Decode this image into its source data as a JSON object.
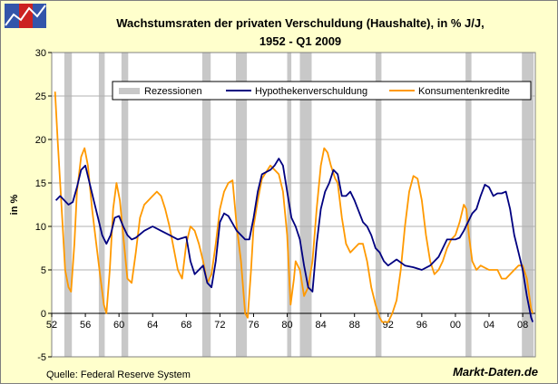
{
  "header": {
    "title_line1": "Wachstumsraten der privaten Verschuldung (Haushalte), in % J/J,",
    "title_line2": "1952 - Q1 2009"
  },
  "footer": {
    "source": "Quelle: Federal Reserve System",
    "brand": "Markt-Daten.de"
  },
  "logo": {
    "icon": "line-chart-logo-icon",
    "colors": [
      "#3355aa",
      "#cc2222",
      "#3355aa"
    ]
  },
  "chart_data": {
    "type": "line",
    "ylabel": "in %",
    "xlim": [
      1952,
      2009.5
    ],
    "ylim": [
      -5,
      30
    ],
    "y_ticks": [
      -5,
      0,
      5,
      10,
      15,
      20,
      25,
      30
    ],
    "y_tick_labels": [
      "-5",
      "0",
      "5",
      "10",
      "15",
      "20",
      "25",
      "30"
    ],
    "x_ticks": [
      1952,
      1956,
      1960,
      1964,
      1968,
      1972,
      1976,
      1980,
      1984,
      1988,
      1992,
      1996,
      2000,
      2004,
      2008
    ],
    "x_tick_labels": [
      "52",
      "56",
      "60",
      "64",
      "68",
      "72",
      "76",
      "80",
      "84",
      "88",
      "92",
      "96",
      "00",
      "04",
      "08"
    ],
    "grid": "horizontal",
    "legend_position": "top-right",
    "recession_label": "Rezessionen",
    "recession_color": "#c8c8c8",
    "recessions": [
      [
        1953.5,
        1954.4
      ],
      [
        1957.6,
        1958.3
      ],
      [
        1960.3,
        1961.1
      ],
      [
        1969.9,
        1970.9
      ],
      [
        1973.9,
        1975.2
      ],
      [
        1980.0,
        1980.5
      ],
      [
        1981.5,
        1982.9
      ],
      [
        1990.5,
        1991.2
      ],
      [
        2001.2,
        2001.9
      ],
      [
        2007.9,
        2009.3
      ]
    ],
    "series": [
      {
        "name": "Hypothekenverschuldung",
        "color": "#000080",
        "points": [
          [
            1952.5,
            13
          ],
          [
            1953,
            13.5
          ],
          [
            1953.5,
            13
          ],
          [
            1954,
            12.5
          ],
          [
            1954.5,
            12.8
          ],
          [
            1955,
            14.5
          ],
          [
            1955.5,
            16.5
          ],
          [
            1956,
            17
          ],
          [
            1956.5,
            15
          ],
          [
            1957,
            13
          ],
          [
            1957.5,
            11
          ],
          [
            1958,
            9
          ],
          [
            1958.5,
            8
          ],
          [
            1959,
            9
          ],
          [
            1959.5,
            11
          ],
          [
            1960,
            11.2
          ],
          [
            1960.5,
            10
          ],
          [
            1961,
            9
          ],
          [
            1961.5,
            8.5
          ],
          [
            1962,
            8.7
          ],
          [
            1963,
            9.5
          ],
          [
            1964,
            10
          ],
          [
            1965,
            9.5
          ],
          [
            1966,
            9
          ],
          [
            1967,
            8.5
          ],
          [
            1968,
            8.8
          ],
          [
            1968.5,
            6
          ],
          [
            1969,
            4.5
          ],
          [
            1969.5,
            5
          ],
          [
            1970,
            5.5
          ],
          [
            1970.5,
            3.5
          ],
          [
            1971,
            3
          ],
          [
            1971.5,
            6
          ],
          [
            1972,
            10.5
          ],
          [
            1972.5,
            11.5
          ],
          [
            1973,
            11.2
          ],
          [
            1974,
            9.5
          ],
          [
            1975,
            8.5
          ],
          [
            1975.5,
            8.5
          ],
          [
            1976,
            11
          ],
          [
            1976.5,
            14
          ],
          [
            1977,
            16
          ],
          [
            1978,
            16.5
          ],
          [
            1978.5,
            17
          ],
          [
            1979,
            17.8
          ],
          [
            1979.5,
            17
          ],
          [
            1980,
            14
          ],
          [
            1980.5,
            11
          ],
          [
            1981,
            10
          ],
          [
            1981.5,
            8.5
          ],
          [
            1982,
            5.5
          ],
          [
            1982.5,
            3
          ],
          [
            1983,
            2.5
          ],
          [
            1983.5,
            8
          ],
          [
            1984,
            12
          ],
          [
            1984.5,
            14
          ],
          [
            1985,
            15
          ],
          [
            1985.5,
            16.5
          ],
          [
            1986,
            16
          ],
          [
            1986.5,
            13.5
          ],
          [
            1987,
            13.5
          ],
          [
            1987.5,
            14
          ],
          [
            1988,
            13
          ],
          [
            1989,
            10.5
          ],
          [
            1989.5,
            10
          ],
          [
            1990,
            9
          ],
          [
            1990.5,
            7.5
          ],
          [
            1991,
            7
          ],
          [
            1991.5,
            6
          ],
          [
            1992,
            5.5
          ],
          [
            1993,
            6.2
          ],
          [
            1994,
            5.5
          ],
          [
            1995,
            5.3
          ],
          [
            1996,
            5
          ],
          [
            1997,
            5.5
          ],
          [
            1998,
            6.5
          ],
          [
            1999,
            8.5
          ],
          [
            2000,
            8.5
          ],
          [
            2000.5,
            8.7
          ],
          [
            2001,
            9.5
          ],
          [
            2001.5,
            10.5
          ],
          [
            2002,
            11.5
          ],
          [
            2002.5,
            12
          ],
          [
            2003,
            13.5
          ],
          [
            2003.5,
            14.8
          ],
          [
            2004,
            14.5
          ],
          [
            2004.5,
            13.5
          ],
          [
            2005,
            13.8
          ],
          [
            2005.5,
            13.8
          ],
          [
            2006,
            14
          ],
          [
            2006.5,
            12
          ],
          [
            2007,
            9
          ],
          [
            2007.5,
            7
          ],
          [
            2008,
            5
          ],
          [
            2008.5,
            2
          ],
          [
            2009,
            -0.5
          ],
          [
            2009.2,
            -1
          ]
        ]
      },
      {
        "name": "Konsumentenkredite",
        "color": "#ff9900",
        "points": [
          [
            1952.4,
            25.5
          ],
          [
            1952.7,
            20
          ],
          [
            1953,
            15
          ],
          [
            1953.3,
            10
          ],
          [
            1953.6,
            5
          ],
          [
            1954,
            3
          ],
          [
            1954.3,
            2.5
          ],
          [
            1954.7,
            8
          ],
          [
            1955,
            14
          ],
          [
            1955.5,
            18
          ],
          [
            1955.9,
            19
          ],
          [
            1956.3,
            17
          ],
          [
            1956.8,
            12
          ],
          [
            1957.3,
            8
          ],
          [
            1957.8,
            4
          ],
          [
            1958.2,
            1
          ],
          [
            1958.5,
            0
          ],
          [
            1958.9,
            5
          ],
          [
            1959.3,
            12
          ],
          [
            1959.7,
            15
          ],
          [
            1960.1,
            13
          ],
          [
            1960.6,
            8
          ],
          [
            1961,
            4
          ],
          [
            1961.5,
            3.5
          ],
          [
            1962,
            7
          ],
          [
            1962.5,
            11
          ],
          [
            1963,
            12.5
          ],
          [
            1963.5,
            13
          ],
          [
            1964,
            13.5
          ],
          [
            1964.5,
            14
          ],
          [
            1965,
            13.5
          ],
          [
            1965.5,
            12
          ],
          [
            1966,
            10
          ],
          [
            1967,
            5
          ],
          [
            1967.5,
            4
          ],
          [
            1968,
            8
          ],
          [
            1968.5,
            10
          ],
          [
            1969,
            9.5
          ],
          [
            1969.5,
            8
          ],
          [
            1970,
            6
          ],
          [
            1970.5,
            3.5
          ],
          [
            1971,
            4.5
          ],
          [
            1971.5,
            8
          ],
          [
            1972,
            12
          ],
          [
            1972.5,
            14
          ],
          [
            1973,
            15
          ],
          [
            1973.5,
            15.3
          ],
          [
            1974,
            10
          ],
          [
            1974.5,
            6
          ],
          [
            1975,
            0
          ],
          [
            1975.3,
            -0.5
          ],
          [
            1975.7,
            5
          ],
          [
            1976,
            10
          ],
          [
            1976.5,
            13
          ],
          [
            1977,
            15.5
          ],
          [
            1978,
            17
          ],
          [
            1979,
            16
          ],
          [
            1979.5,
            14
          ],
          [
            1980,
            9
          ],
          [
            1980.4,
            1
          ],
          [
            1980.8,
            4
          ],
          [
            1981,
            6
          ],
          [
            1981.5,
            5
          ],
          [
            1982,
            2
          ],
          [
            1982.5,
            3
          ],
          [
            1983,
            6
          ],
          [
            1983.5,
            12
          ],
          [
            1984,
            17
          ],
          [
            1984.4,
            19
          ],
          [
            1984.8,
            18.5
          ],
          [
            1985.2,
            17
          ],
          [
            1985.7,
            15.5
          ],
          [
            1986,
            15
          ],
          [
            1986.5,
            11
          ],
          [
            1987,
            8
          ],
          [
            1987.5,
            7
          ],
          [
            1988,
            7.5
          ],
          [
            1988.5,
            8
          ],
          [
            1989,
            8
          ],
          [
            1989.5,
            6
          ],
          [
            1990,
            3
          ],
          [
            1990.5,
            1
          ],
          [
            1991,
            -0.5
          ],
          [
            1991.3,
            -1
          ],
          [
            1991.7,
            -1
          ],
          [
            1992,
            -1
          ],
          [
            1992.5,
            0
          ],
          [
            1993,
            1.5
          ],
          [
            1993.5,
            5
          ],
          [
            1994,
            10
          ],
          [
            1994.5,
            14
          ],
          [
            1995,
            15.8
          ],
          [
            1995.5,
            15.5
          ],
          [
            1996,
            13
          ],
          [
            1996.5,
            9
          ],
          [
            1997,
            6
          ],
          [
            1997.5,
            4.5
          ],
          [
            1998,
            5
          ],
          [
            1998.5,
            6
          ],
          [
            1999,
            7.5
          ],
          [
            1999.5,
            8.5
          ],
          [
            2000,
            9
          ],
          [
            2000.5,
            10.5
          ],
          [
            2001,
            12.5
          ],
          [
            2001.3,
            12
          ],
          [
            2001.6,
            9
          ],
          [
            2002,
            6
          ],
          [
            2002.5,
            5
          ],
          [
            2003,
            5.5
          ],
          [
            2004,
            5
          ],
          [
            2005,
            5
          ],
          [
            2005.5,
            4
          ],
          [
            2006,
            4
          ],
          [
            2007,
            5
          ],
          [
            2007.5,
            5.5
          ],
          [
            2008,
            5.5
          ],
          [
            2008.5,
            4
          ],
          [
            2009,
            0.5
          ],
          [
            2009.2,
            0
          ]
        ]
      }
    ]
  }
}
